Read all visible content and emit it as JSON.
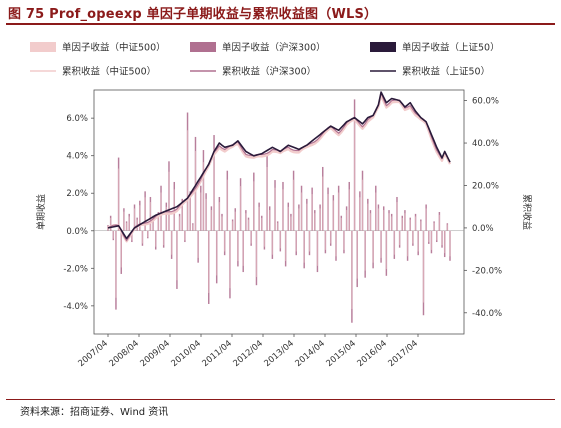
{
  "figure": {
    "title": "图 75 Prof_opeexp 单因子单期收益与累积收益图（WLS）",
    "source": "资料来源：招商证券、Wind 资讯"
  },
  "chart_data": {
    "type": "bar+line",
    "legend": [
      {
        "label": "单因子收益（中证500）",
        "kind": "bar",
        "color": "#f2cccc"
      },
      {
        "label": "单因子收益（沪深300）",
        "kind": "bar",
        "color": "#b07090"
      },
      {
        "label": "单因子收益（上证50）",
        "kind": "bar",
        "color": "#2a1a3a"
      },
      {
        "label": "累积收益（中证500）",
        "kind": "line",
        "color": "#f2cccc"
      },
      {
        "label": "累积收益（沪深300）",
        "kind": "line",
        "color": "#b07090"
      },
      {
        "label": "累积收益（上证50）",
        "kind": "line",
        "color": "#2a1a3a"
      }
    ],
    "x_ticks": [
      "2007/04",
      "2008/04",
      "2009/04",
      "2010/04",
      "2011/04",
      "2012/04",
      "2013/04",
      "2014/04",
      "2015/04",
      "2016/04",
      "2017/04"
    ],
    "y_left": {
      "label": "单期收益",
      "min": -5.5,
      "max": 7.5,
      "ticks": [
        "-4.0%",
        "-2.0%",
        "0.0%",
        "2.0%",
        "4.0%",
        "6.0%"
      ],
      "tick_values": [
        -4,
        -2,
        0,
        2,
        4,
        6
      ]
    },
    "y_right": {
      "label": "累积收益",
      "min": -50,
      "max": 65,
      "ticks": [
        "-40.0%",
        "-20.0%",
        "0.0%",
        "20.0%",
        "40.0%",
        "60.0%"
      ],
      "tick_values": [
        -40,
        -20,
        0,
        20,
        40,
        60
      ]
    },
    "n_periods": 130,
    "cumulative_keypoints": [
      [
        0,
        0
      ],
      [
        4,
        1
      ],
      [
        7,
        -5
      ],
      [
        10,
        0
      ],
      [
        14,
        3
      ],
      [
        18,
        6
      ],
      [
        22,
        8
      ],
      [
        26,
        10
      ],
      [
        30,
        14
      ],
      [
        33,
        20
      ],
      [
        36,
        26
      ],
      [
        38,
        30
      ],
      [
        40,
        36
      ],
      [
        42,
        40
      ],
      [
        44,
        38
      ],
      [
        47,
        39
      ],
      [
        49,
        41
      ],
      [
        52,
        36
      ],
      [
        55,
        34
      ],
      [
        58,
        35
      ],
      [
        62,
        38
      ],
      [
        65,
        36
      ],
      [
        68,
        39
      ],
      [
        72,
        37
      ],
      [
        75,
        39
      ],
      [
        78,
        42
      ],
      [
        81,
        45
      ],
      [
        84,
        48
      ],
      [
        87,
        46
      ],
      [
        90,
        50
      ],
      [
        93,
        52
      ],
      [
        96,
        49
      ],
      [
        98,
        52
      ],
      [
        100,
        53
      ],
      [
        102,
        58
      ],
      [
        103,
        64
      ],
      [
        105,
        59
      ],
      [
        107,
        61
      ],
      [
        110,
        60
      ],
      [
        112,
        57
      ],
      [
        114,
        59
      ],
      [
        116,
        55
      ],
      [
        118,
        52
      ],
      [
        120,
        50
      ],
      [
        122,
        44
      ],
      [
        124,
        38
      ],
      [
        126,
        33
      ],
      [
        127,
        36
      ],
      [
        129,
        31
      ]
    ],
    "bars_hs300": [
      0.3,
      0.8,
      -0.5,
      -4.2,
      3.9,
      -2.3,
      1.2,
      0.5,
      0.9,
      -0.6,
      1.4,
      0.7,
      1.6,
      -0.8,
      2.1,
      -0.4,
      1.8,
      0.8,
      -1.0,
      1.0,
      2.4,
      -0.9,
      1.5,
      3.7,
      -1.5,
      2.6,
      -3.1,
      0.9,
      1.7,
      -0.6,
      6.3,
      2.1,
      0.4,
      5.0,
      -1.7,
      2.4,
      4.3,
      2.0,
      -3.9,
      1.3,
      5.1,
      -2.8,
      1.8,
      0.9,
      -1.3,
      3.2,
      -3.6,
      0.6,
      1.2,
      -1.9,
      2.8,
      -2.2,
      1.1,
      0.7,
      -0.8,
      3.1,
      -2.9,
      1.5,
      0.8,
      -1.0,
      4.0,
      1.3,
      -1.5,
      2.7,
      0.5,
      -1.1,
      2.6,
      -1.9,
      1.5,
      0.9,
      3.2,
      -1.3,
      1.4,
      2.4,
      -2.0,
      1.7,
      -1.3,
      2.3,
      1.1,
      -2.2,
      1.4,
      3.4,
      -1.2,
      2.3,
      -0.8,
      1.9,
      -1.6,
      2.4,
      0.8,
      -1.2,
      1.3,
      2.6,
      -4.9,
      7.0,
      -3.0,
      2.1,
      3.2,
      -2.5,
      1.7,
      1.1,
      -2.0,
      2.4,
      1.4,
      -1.7,
      1.3,
      -2.4,
      1.1,
      0.9,
      -1.5,
      1.8,
      -0.9,
      0.8,
      1.1,
      -1.6,
      0.7,
      -0.8,
      0.9,
      -1.3,
      0.6,
      -4.5,
      1.4,
      -0.7,
      -1.2,
      0.5,
      -0.6,
      1.0,
      -0.9,
      -1.4,
      0.4,
      -1.6
    ]
  }
}
